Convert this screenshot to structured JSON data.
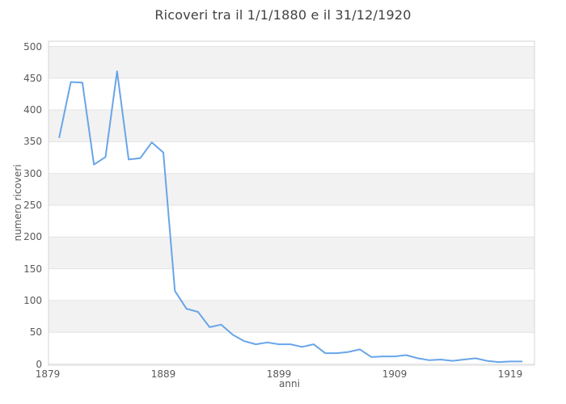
{
  "chart_data": {
    "type": "line",
    "title": "Ricoveri tra il 1/1/1880 e il 31/12/1920",
    "xlabel": "anni",
    "ylabel": "numero ricoveri",
    "x": [
      1880,
      1881,
      1882,
      1883,
      1884,
      1885,
      1886,
      1887,
      1888,
      1889,
      1890,
      1891,
      1892,
      1893,
      1894,
      1895,
      1896,
      1897,
      1898,
      1899,
      1900,
      1901,
      1902,
      1903,
      1904,
      1905,
      1906,
      1907,
      1908,
      1909,
      1910,
      1911,
      1912,
      1913,
      1914,
      1915,
      1916,
      1917,
      1918,
      1919,
      1920
    ],
    "values": [
      357,
      444,
      443,
      314,
      326,
      461,
      322,
      324,
      349,
      333,
      115,
      87,
      82,
      58,
      62,
      46,
      36,
      31,
      34,
      31,
      31,
      27,
      31,
      17,
      17,
      19,
      23,
      11,
      12,
      12,
      14,
      9,
      6,
      7,
      5,
      7,
      9,
      5,
      3,
      4,
      4
    ],
    "x_axis": {
      "ticks": [
        1879,
        1889,
        1899,
        1909,
        1919
      ],
      "range": [
        1879,
        1921
      ]
    },
    "y_axis": {
      "ticks": [
        0,
        50,
        100,
        150,
        200,
        250,
        300,
        350,
        400,
        450,
        500
      ],
      "range": [
        0,
        500
      ]
    },
    "legend": "none",
    "grid": "horizontal gridlines with alternating gray bands",
    "colors": {
      "line": "#68a5e9",
      "band": "#f2f2f2",
      "gridline": "#e3e3e3",
      "plot_border": "#d6d6d6",
      "title_text": "#424242",
      "tick_text": "#595959",
      "background": "#ffffff"
    }
  }
}
